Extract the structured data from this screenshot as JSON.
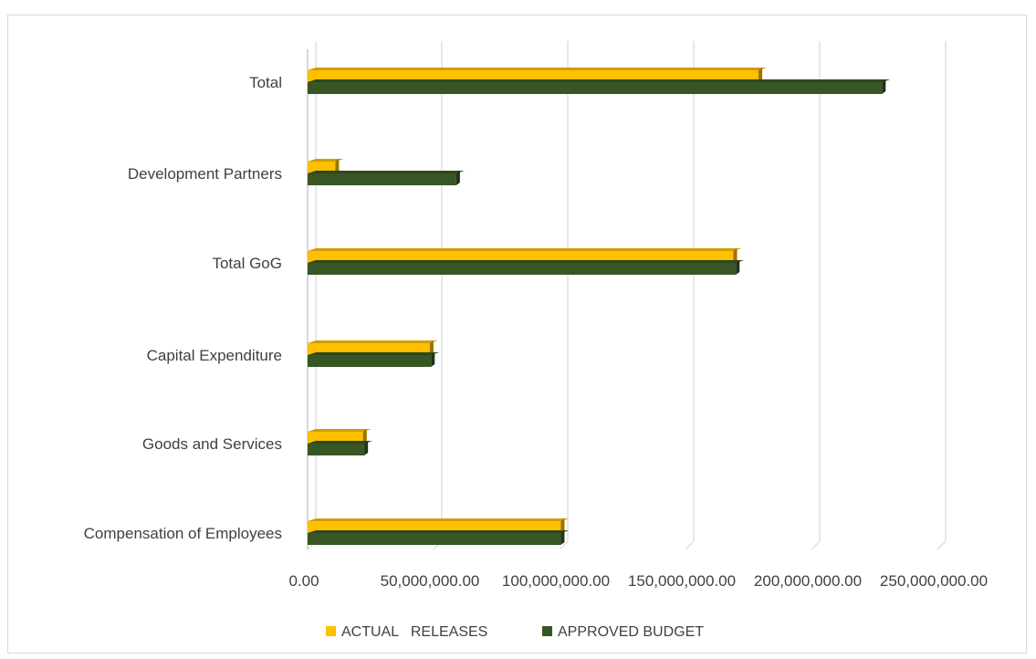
{
  "chart_data": {
    "type": "bar",
    "orientation": "horizontal",
    "style": "3d",
    "categories": [
      "Compensation of Employees",
      "Goods and Services",
      "Capital Expenditure",
      "Total GoG",
      "Development Partners",
      "Total"
    ],
    "series": [
      {
        "name": "ACTUAL   RELEASES",
        "color": "#ffc000",
        "values": [
          100500000,
          22000000,
          48500000,
          169000000,
          11000000,
          179000000
        ]
      },
      {
        "name": "APPROVED BUDGET",
        "color": "#375623",
        "values": [
          100500000,
          22500000,
          49000000,
          170000000,
          59000000,
          228000000
        ]
      }
    ],
    "x_tick_labels": [
      "0.00",
      "50,000,000.00",
      "100,000,000.00",
      "150,000,000.00",
      "200,000,000.00",
      "250,000,000.00"
    ],
    "xlim": [
      0,
      250000000
    ],
    "grid": true,
    "legend_position": "bottom",
    "title": "",
    "xlabel": "",
    "ylabel": ""
  }
}
